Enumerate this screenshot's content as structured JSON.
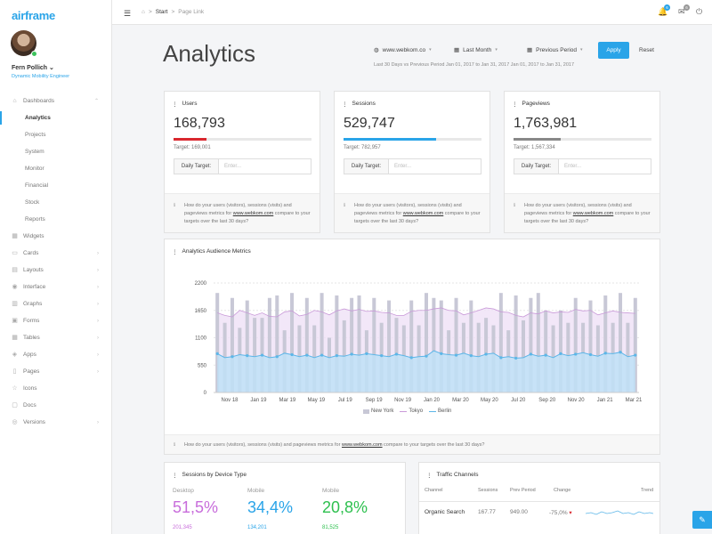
{
  "app": {
    "logo": "airframe"
  },
  "user": {
    "name": "Fern Pollich",
    "role": "Dynamic Mobility Engineer"
  },
  "sidebar": {
    "dashboards": "Dashboards",
    "sub": [
      "Analytics",
      "Projects",
      "System",
      "Monitor",
      "Financial",
      "Stock",
      "Reports"
    ],
    "items": [
      {
        "label": "Widgets",
        "icon": "widgets-icon",
        "glyph": "▦",
        "chevron": false
      },
      {
        "label": "Cards",
        "icon": "cards-icon",
        "glyph": "▭",
        "chevron": true
      },
      {
        "label": "Layouts",
        "icon": "layouts-icon",
        "glyph": "▤",
        "chevron": true
      },
      {
        "label": "Interface",
        "icon": "interface-icon",
        "glyph": "◉",
        "chevron": true
      },
      {
        "label": "Graphs",
        "icon": "graphs-icon",
        "glyph": "▥",
        "chevron": true
      },
      {
        "label": "Forms",
        "icon": "forms-icon",
        "glyph": "▣",
        "chevron": true
      },
      {
        "label": "Tables",
        "icon": "tables-icon",
        "glyph": "▦",
        "chevron": true
      },
      {
        "label": "Apps",
        "icon": "apps-icon",
        "glyph": "◈",
        "chevron": true
      },
      {
        "label": "Pages",
        "icon": "pages-icon",
        "glyph": "▯",
        "chevron": true
      },
      {
        "label": "Icons",
        "icon": "star-icon",
        "glyph": "☆",
        "chevron": false
      },
      {
        "label": "Docs",
        "icon": "docs-icon",
        "glyph": "▢",
        "chevron": false
      },
      {
        "label": "Versions",
        "icon": "versions-icon",
        "glyph": "◎",
        "chevron": true
      }
    ]
  },
  "breadcrumb": {
    "start": "Start",
    "sep": ">",
    "current": "Page Link"
  },
  "notifications": {
    "bell_count": "6",
    "mail_count": "6"
  },
  "page": {
    "title": "Analytics"
  },
  "controls": {
    "site": "www.webkom.co",
    "range": "Last Month",
    "compare": "Previous Period",
    "apply": "Apply",
    "reset": "Reset",
    "period_text": "Last 30 Days vs Previous Period  Jan 01, 2017 to Jan 31, 2017  Jan 01, 2017 to Jan 31, 2017"
  },
  "kpis": [
    {
      "title": "Users",
      "value": "168,793",
      "target": "Target: 169,001",
      "progress": 0.24,
      "color": "#d9282f"
    },
    {
      "title": "Sessions",
      "value": "529,747",
      "target": "Target: 782,957",
      "progress": 0.67,
      "color": "#2aa4e8"
    },
    {
      "title": "Pageviews",
      "value": "1,763,981",
      "target": "Target: 1,567,334",
      "progress": 0.34,
      "color": "#888888"
    }
  ],
  "daily_target": {
    "label": "Daily Target:",
    "placeholder": "Enter..."
  },
  "kpi_note": {
    "pre": "How do your users (visitors), sessions (visits) and pageviews metrics for ",
    "link": "www.webkom.com",
    "post": " compare to your targets over the last 30 days?"
  },
  "audience": {
    "title": "Analytics Audience Metrics",
    "note_pre": "How do your users (visitors), sessions (visits) and pageviews metrics for ",
    "note_link": "www.webkom.com",
    "note_post": " compare to your targets over the last 30 days?"
  },
  "chart_data": {
    "type": "bar",
    "title": "Analytics Audience Metrics",
    "ylim": [
      0,
      2200
    ],
    "yticks": [
      0,
      550,
      1100,
      1650,
      2200
    ],
    "xticks": [
      "Nov 18",
      "Jan 19",
      "Mar 19",
      "May 19",
      "Jul 19",
      "Sep 19",
      "Nov 19",
      "Jan 20",
      "Mar 20",
      "May 20",
      "Jul 20",
      "Sep 20",
      "Nov 20",
      "Jan 21",
      "Mar 21"
    ],
    "legend": "bottom",
    "series": [
      {
        "name": "New York",
        "type": "bar",
        "color": "#c8c8d6",
        "values": [
          2000,
          1400,
          1900,
          1300,
          1850,
          1500,
          1500,
          1900,
          1950,
          1250,
          2000,
          1350,
          1900,
          1350,
          2000,
          1100,
          1950,
          1450,
          1900,
          1950,
          1250,
          1900,
          1400,
          1850,
          1500,
          1350,
          1850,
          1350,
          2000,
          1900,
          1850,
          1250,
          1900,
          1400,
          1850,
          1400,
          1500,
          1350,
          2000,
          1250,
          1950,
          1450,
          1900,
          2000,
          1650,
          1350,
          1650,
          1400,
          1900,
          1400,
          1850,
          1350,
          1950,
          1400,
          2000,
          1400,
          1900
        ]
      },
      {
        "name": "Tokyo",
        "type": "line",
        "color": "#c99ad8",
        "values": [
          1600,
          1550,
          1520,
          1650,
          1600,
          1550,
          1600,
          1530,
          1520,
          1620,
          1640,
          1540,
          1570,
          1650,
          1620,
          1560,
          1640,
          1680,
          1640,
          1670,
          1630,
          1640,
          1610,
          1600,
          1550,
          1550,
          1630,
          1650,
          1650,
          1680,
          1700,
          1650,
          1640,
          1560,
          1600,
          1650,
          1700,
          1680,
          1620,
          1610,
          1550,
          1520,
          1600,
          1580,
          1640,
          1600,
          1620,
          1610,
          1670,
          1640,
          1650,
          1560,
          1600,
          1640,
          1610,
          1600,
          1590
        ]
      },
      {
        "name": "Berlin",
        "type": "area",
        "color": "#5cb6e8",
        "values": [
          780,
          700,
          720,
          760,
          740,
          720,
          750,
          700,
          720,
          790,
          760,
          720,
          750,
          700,
          750,
          700,
          740,
          730,
          770,
          750,
          780,
          760,
          740,
          720,
          770,
          740,
          700,
          720,
          730,
          840,
          780,
          760,
          750,
          790,
          740,
          720,
          770,
          790,
          700,
          720,
          690,
          700,
          770,
          730,
          750,
          700,
          780,
          740,
          770,
          800,
          760,
          730,
          790,
          780,
          810,
          720,
          750
        ]
      }
    ]
  },
  "devices": {
    "title": "Sessions by Device Type",
    "items": [
      {
        "label": "Desktop",
        "value": "51,5%",
        "sub": "201,345",
        "color": "#c86ddb"
      },
      {
        "label": "Mobile",
        "value": "34,4%",
        "sub": "134,201",
        "color": "#2aa4e8"
      },
      {
        "label": "Mobile",
        "value": "20,8%",
        "sub": "81,525",
        "color": "#2ec04f"
      }
    ]
  },
  "traffic": {
    "title": "Traffic Channels",
    "headers": [
      "Channel",
      "Sessions",
      "Prev Period",
      "Change",
      "Trend"
    ],
    "rows": [
      {
        "channel": "Organic Search",
        "sessions": "167.77",
        "prev": "949.00",
        "change": "-75,0%"
      }
    ]
  }
}
